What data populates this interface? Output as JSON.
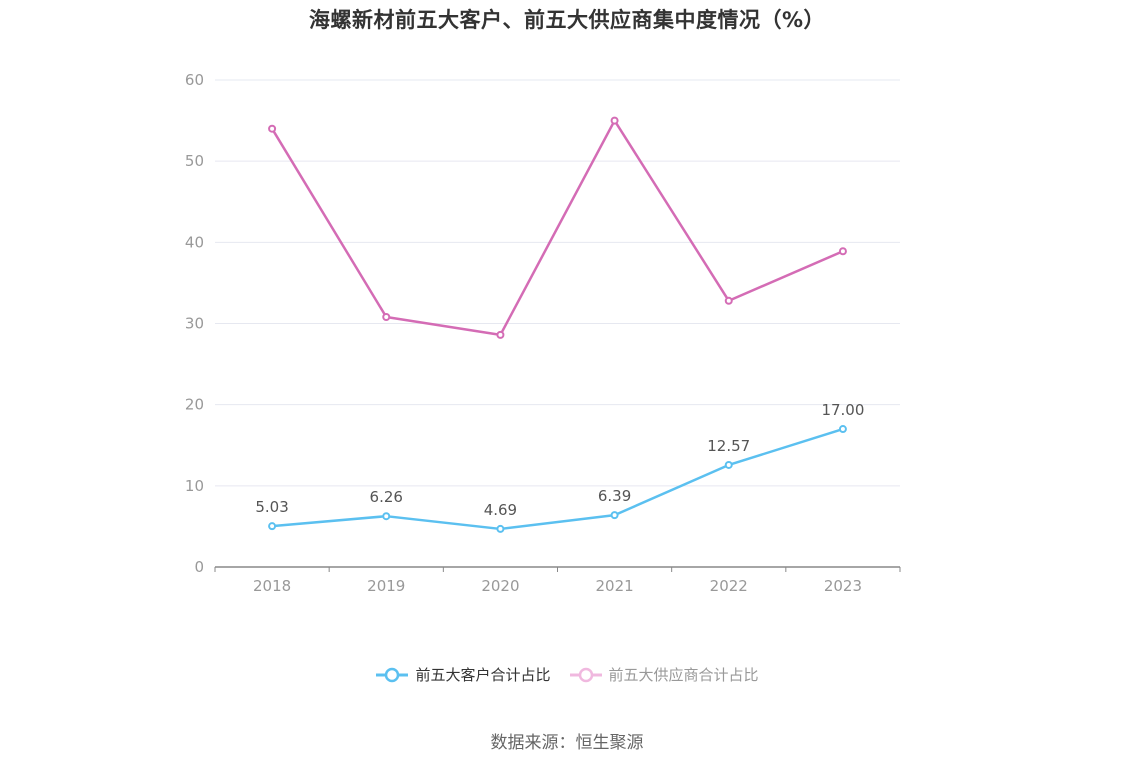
{
  "chart_data": {
    "type": "line",
    "title": "海螺新材前五大客户、前五大供应商集中度情况（%）",
    "categories": [
      "2018",
      "2019",
      "2020",
      "2021",
      "2022",
      "2023"
    ],
    "series": [
      {
        "name": "前五大客户合计占比",
        "values": [
          5.03,
          6.26,
          4.69,
          6.39,
          12.57,
          17.0
        ],
        "labels": [
          "5.03",
          "6.26",
          "4.69",
          "6.39",
          "12.57",
          "17.00"
        ],
        "color": "#5bc0f0",
        "show_labels": true
      },
      {
        "name": "前五大供应商合计占比",
        "values": [
          54.0,
          30.8,
          28.6,
          55.0,
          32.8,
          38.9
        ],
        "color": "#d46cb5",
        "show_labels": false
      }
    ],
    "ylim": [
      0,
      60
    ],
    "yticks": [
      0,
      10,
      20,
      30,
      40,
      50,
      60
    ],
    "grid": true,
    "legend_position": "bottom"
  },
  "source": "数据来源：恒生聚源"
}
